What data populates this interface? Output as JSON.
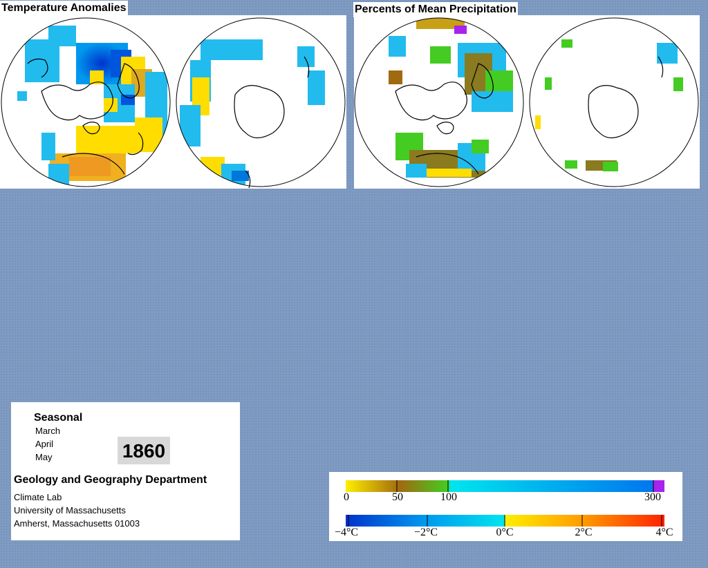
{
  "temperature_panel": {
    "title": "Temperature Anomalies"
  },
  "precipitation_panel": {
    "title": "Percents of Mean Precipitation"
  },
  "info": {
    "season": "Seasonal",
    "months": [
      "March",
      "April",
      "May"
    ],
    "year": "1860",
    "department": "Geology and Geography Department",
    "lab": "Climate Lab",
    "university": "University of Massachusetts",
    "address": "Amherst, Massachusetts 01003"
  },
  "legend": {
    "precipitation_ticks": [
      "0",
      "50",
      "100",
      "300"
    ],
    "temperature_ticks": [
      "−4°C",
      "−2°C",
      "0°C",
      "2°C",
      "4°C"
    ]
  },
  "colors": {
    "background": "#7f9bc2",
    "cold_dark": "#0033cc",
    "cold_mid": "#0099ee",
    "cyan": "#00e5ee",
    "yellow": "#ffee00",
    "orange": "#ff9900",
    "red": "#ff2200",
    "brown": "#a06a10",
    "green": "#44cc22",
    "purple": "#aa22ee"
  }
}
